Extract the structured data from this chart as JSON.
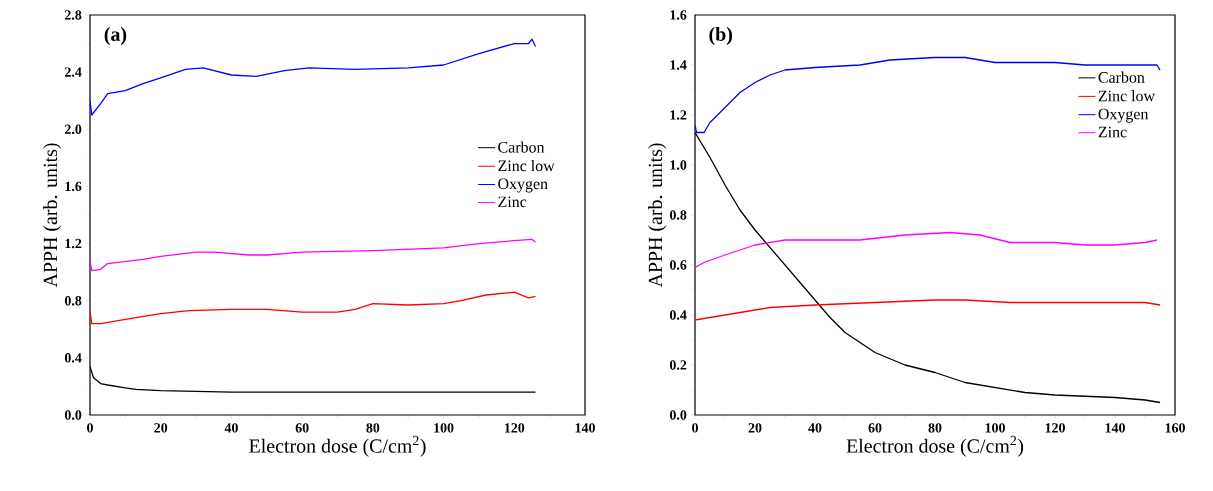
{
  "chart_data": [
    {
      "type": "line",
      "annotations": [
        "**(a)**"
      ],
      "xlabel": "Electron dose (C/cm$^{2}$)",
      "ylabel": "APPH (arb. units)",
      "xlim": [
        0,
        140
      ],
      "ylim": [
        0,
        2.8
      ],
      "xticks": [
        0,
        20,
        40,
        60,
        80,
        100,
        120,
        140
      ],
      "yticks": [
        {
          "value": 0,
          "label": "0.0"
        },
        0.4,
        0.8,
        1.2,
        1.6,
        {
          "value": 2,
          "label": "2.0"
        },
        2.4,
        2.8
      ],
      "legend": "right",
      "grid": false,
      "series": [
        {
          "name": "Carbon",
          "color": "#000000",
          "x": [
            0,
            1,
            3,
            5,
            10,
            13,
            20,
            40,
            60,
            100,
            126
          ],
          "values": [
            0.34,
            0.26,
            0.22,
            0.21,
            0.19,
            0.18,
            0.17,
            0.16,
            0.16,
            0.16,
            0.16
          ]
        },
        {
          "name": "Zinc low",
          "color": "#ff0000",
          "x": [
            0,
            0.5,
            3,
            10,
            20,
            28,
            40,
            50,
            60,
            70,
            75,
            80,
            90,
            100,
            105,
            112,
            120,
            124,
            126
          ],
          "values": [
            0.73,
            0.64,
            0.64,
            0.67,
            0.71,
            0.73,
            0.74,
            0.74,
            0.72,
            0.72,
            0.74,
            0.78,
            0.77,
            0.78,
            0.8,
            0.84,
            0.86,
            0.82,
            0.83
          ]
        },
        {
          "name": "Oxygen",
          "color": "#0000ff",
          "x": [
            0,
            0.5,
            3,
            5,
            10,
            15,
            20,
            27,
            32,
            40,
            47,
            55,
            62,
            75,
            90,
            100,
            110,
            120,
            124,
            125,
            126
          ],
          "values": [
            2.2,
            2.1,
            2.18,
            2.25,
            2.27,
            2.32,
            2.36,
            2.42,
            2.43,
            2.38,
            2.37,
            2.41,
            2.43,
            2.42,
            2.43,
            2.45,
            2.53,
            2.6,
            2.6,
            2.63,
            2.58
          ]
        },
        {
          "name": "Zinc",
          "color": "#ff00ff",
          "x": [
            0,
            0.5,
            3,
            5,
            15,
            20,
            30,
            35,
            45,
            50,
            60,
            80,
            100,
            110,
            120,
            125,
            126
          ],
          "values": [
            1.08,
            1.01,
            1.02,
            1.06,
            1.09,
            1.11,
            1.14,
            1.14,
            1.12,
            1.12,
            1.14,
            1.15,
            1.17,
            1.2,
            1.22,
            1.23,
            1.21
          ]
        }
      ]
    },
    {
      "type": "line",
      "annotations": [
        "**(b)**"
      ],
      "xlabel": "Electron dose (C/cm$^{2}$)",
      "ylabel": "APPH (arb. units)",
      "xlim": [
        0,
        160
      ],
      "ylim": [
        0,
        1.6
      ],
      "xticks": [
        0,
        20,
        40,
        60,
        80,
        100,
        120,
        140,
        160
      ],
      "yticks": [
        {
          "value": 0,
          "label": "0.0"
        },
        0.2,
        0.4,
        0.6,
        0.8,
        {
          "value": 1,
          "label": "1.0"
        },
        1.2,
        1.4,
        1.6
      ],
      "legend": "top right",
      "grid": false,
      "series": [
        {
          "name": "Carbon",
          "color": "#000000",
          "x": [
            0,
            5,
            10,
            15,
            20,
            30,
            40,
            45,
            50,
            60,
            70,
            80,
            90,
            100,
            110,
            120,
            140,
            150,
            155
          ],
          "values": [
            1.13,
            1.03,
            0.92,
            0.82,
            0.74,
            0.6,
            0.46,
            0.39,
            0.33,
            0.25,
            0.2,
            0.17,
            0.13,
            0.11,
            0.09,
            0.08,
            0.07,
            0.06,
            0.05
          ]
        },
        {
          "name": "Zinc low",
          "color": "#ff0000",
          "x": [
            0,
            5,
            15,
            25,
            40,
            60,
            80,
            90,
            105,
            120,
            150,
            155
          ],
          "values": [
            0.38,
            0.39,
            0.41,
            0.43,
            0.44,
            0.45,
            0.46,
            0.46,
            0.45,
            0.45,
            0.45,
            0.44
          ]
        },
        {
          "name": "Oxygen",
          "color": "#0000ff",
          "x": [
            0,
            0.5,
            3,
            5,
            10,
            15,
            20,
            25,
            30,
            40,
            55,
            65,
            80,
            90,
            100,
            120,
            130,
            150,
            154,
            155
          ],
          "values": [
            1.16,
            1.13,
            1.13,
            1.17,
            1.23,
            1.29,
            1.33,
            1.36,
            1.38,
            1.39,
            1.4,
            1.42,
            1.43,
            1.43,
            1.41,
            1.41,
            1.4,
            1.4,
            1.4,
            1.38
          ]
        },
        {
          "name": "Zinc",
          "color": "#ff00ff",
          "x": [
            0,
            3,
            10,
            20,
            30,
            40,
            45,
            55,
            70,
            85,
            95,
            105,
            120,
            130,
            140,
            150,
            154
          ],
          "values": [
            0.59,
            0.61,
            0.64,
            0.68,
            0.7,
            0.7,
            0.7,
            0.7,
            0.72,
            0.73,
            0.72,
            0.69,
            0.69,
            0.68,
            0.68,
            0.69,
            0.7
          ]
        }
      ]
    }
  ]
}
